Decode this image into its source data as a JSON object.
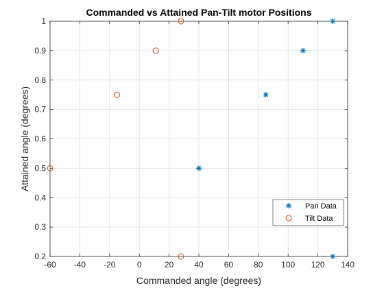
{
  "chart_data": {
    "type": "scatter",
    "title": "Commanded vs Attained Pan-Tilt motor Positions",
    "xlabel": "Commanded angle (degrees)",
    "ylabel": "Attained angle (degrees)",
    "xlim": [
      -60,
      140
    ],
    "ylim": [
      0.2,
      1.0
    ],
    "xticks": [
      -60,
      -40,
      -20,
      0,
      20,
      40,
      60,
      80,
      100,
      120,
      140
    ],
    "yticks": [
      0.2,
      0.3,
      0.4,
      0.5,
      0.6,
      0.7,
      0.8,
      0.9,
      1.0
    ],
    "xtick_labels": [
      "-60",
      "-40",
      "-20",
      "0",
      "20",
      "40",
      "60",
      "80",
      "100",
      "120",
      "140"
    ],
    "ytick_labels": [
      "0.2",
      "0.3",
      "0.4",
      "0.5",
      "0.6",
      "0.7",
      "0.8",
      "0.9",
      "1"
    ],
    "grid": true,
    "legend_position": "bottom-right",
    "series": [
      {
        "name": "Pan Data",
        "marker": "asterisk",
        "color": "#0072BD",
        "points": [
          [
            130,
            0.2
          ],
          [
            40,
            0.5
          ],
          [
            85,
            0.75
          ],
          [
            110,
            0.9
          ],
          [
            130,
            1.0
          ]
        ]
      },
      {
        "name": "Tilt Data",
        "marker": "circle",
        "color": "#D95319",
        "points": [
          [
            28,
            0.2
          ],
          [
            -60,
            0.5
          ],
          [
            -15,
            0.75
          ],
          [
            11,
            0.9
          ],
          [
            28,
            1.0
          ]
        ]
      }
    ]
  }
}
